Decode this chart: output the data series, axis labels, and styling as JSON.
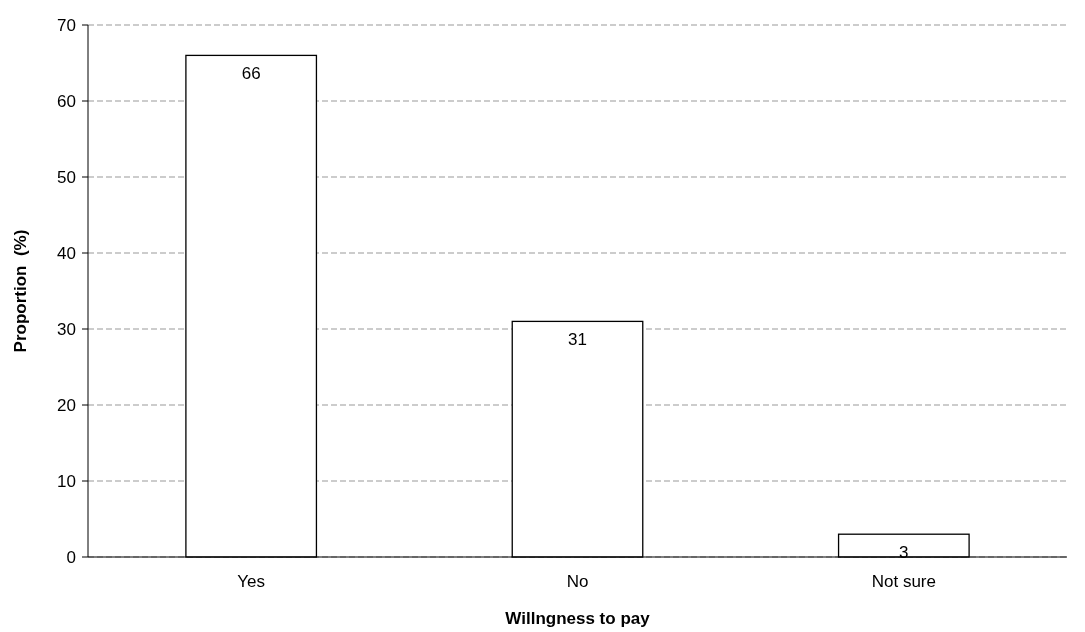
{
  "chart_data": {
    "type": "bar",
    "xlabel": "Willngness to pay",
    "ylabel": "Proportion  (%)",
    "categories": [
      "Yes",
      "No",
      "Not sure"
    ],
    "values": [
      66,
      31,
      3
    ],
    "color": "#ffffff",
    "ylim": [
      0,
      70
    ],
    "yticks": [
      0,
      10,
      20,
      30,
      40,
      50,
      60,
      70
    ],
    "grid": "y",
    "data_labels": true
  }
}
